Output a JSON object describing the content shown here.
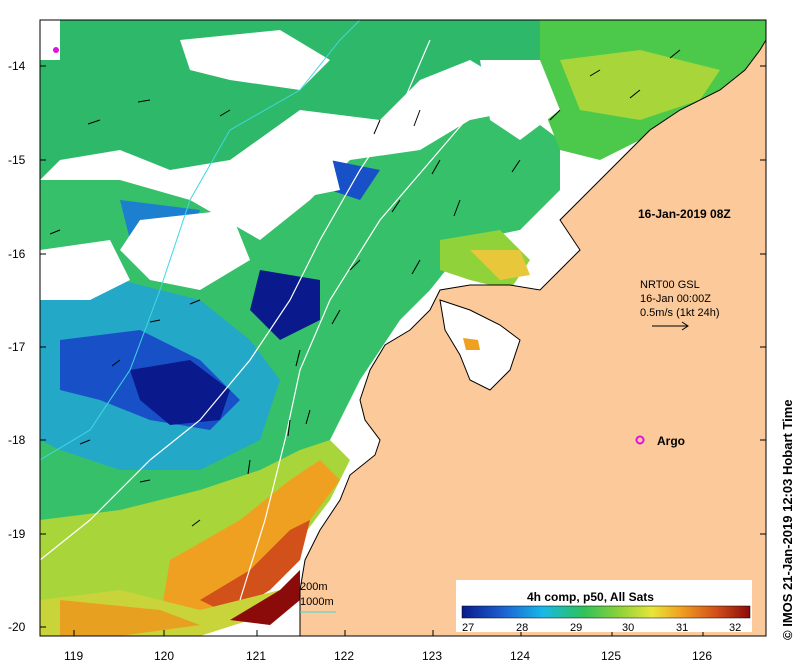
{
  "map": {
    "timestamp": "16-Jan-2019 08Z",
    "annotation": {
      "line1": "NRT00 GSL",
      "line2": "16-Jan 00:00Z",
      "line3": "0.5m/s (1kt 24h)"
    },
    "argo_label": "Argo",
    "depth_contours": {
      "label1": "200m",
      "label2": "1000m"
    },
    "colorbar": {
      "title": "4h comp, p50, All Sats",
      "ticks": [
        "27",
        "28",
        "29",
        "30",
        "31",
        "32"
      ],
      "colors": [
        "#0a1a8c",
        "#1c5fd0",
        "#18b8e8",
        "#2ec25a",
        "#8fd23a",
        "#e8e63a",
        "#f0a020",
        "#d2501a",
        "#8b0a0a"
      ]
    },
    "credit": "IMOS 21-Jan-2019 12:03 Hobart Time",
    "x_axis": {
      "ticks": [
        "119",
        "120",
        "121",
        "122",
        "123",
        "124",
        "125",
        "126"
      ]
    },
    "y_axis": {
      "ticks": [
        "-14",
        "-15",
        "-16",
        "-17",
        "-18",
        "-19",
        "-20"
      ]
    }
  }
}
